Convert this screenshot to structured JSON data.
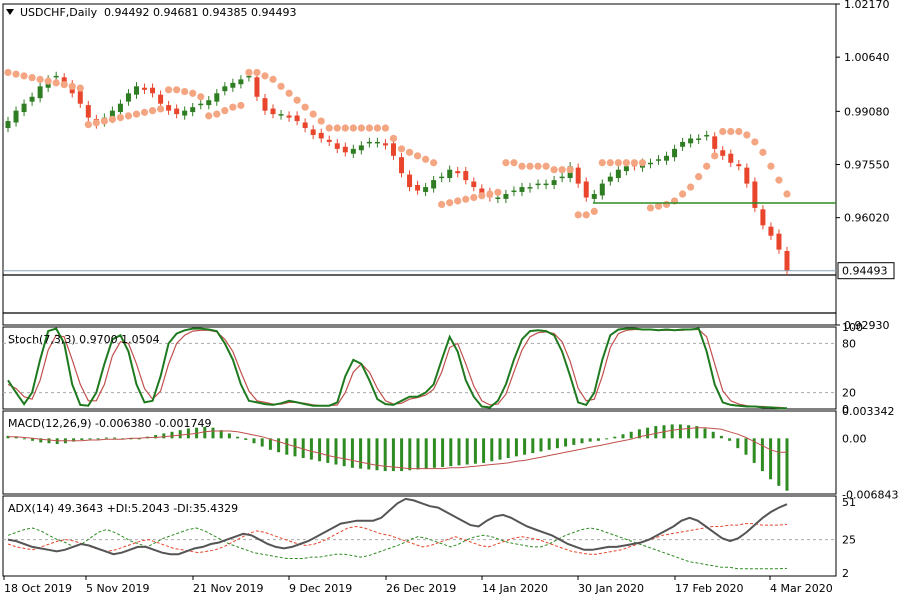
{
  "header": {
    "symbol_line": "USDCHF,Daily",
    "ohlc": "0.94492 0.94681 0.94385 0.94493"
  },
  "colors": {
    "bull": "#2e7d22",
    "bear": "#e8452c",
    "sar": "#f4a582",
    "stoch_main": "#1f7a1f",
    "stoch_signal": "#c0504d",
    "macd_hist": "#2e8b22",
    "macd_signal": "#c0504d",
    "adx": "#555555",
    "di_plus": "#2e8b22",
    "di_minus": "#e8452c",
    "hline": "#2e8b22",
    "current_price_line": "#8aa0b8"
  },
  "chart_data": [
    {
      "type": "candlestick",
      "name_label": "USDCHF,Daily",
      "ylim": [
        0.9293,
        1.0217
      ],
      "y_ticks": [
        "1.02170",
        "1.00640",
        "0.99080",
        "0.97550",
        "0.96020",
        "0.92930"
      ],
      "y_tick_values": [
        1.0217,
        1.0064,
        0.9908,
        0.9755,
        0.9602,
        0.9293
      ],
      "current_price": 0.94493,
      "current_price_label": "0.94493",
      "horizontal_line": 0.9644,
      "x_labels": [
        "18 Oct 2019",
        "5 Nov 2019",
        "21 Nov 2019",
        "9 Dec 2019",
        "26 Dec 2019",
        "14 Jan 2020",
        "30 Jan 2020",
        "17 Feb 2020",
        "4 Mar 2020"
      ],
      "close_path": [
        0.988,
        0.991,
        0.993,
        0.995,
        0.998,
        1.0,
        1.001,
        0.999,
        0.996,
        0.993,
        0.989,
        0.987,
        0.989,
        0.991,
        0.993,
        0.996,
        0.998,
        0.997,
        0.996,
        0.993,
        0.991,
        0.99,
        0.991,
        0.992,
        0.993,
        0.994,
        0.996,
        0.998,
        0.999,
        1.0,
        1.001,
        0.995,
        0.991,
        0.99,
        0.99,
        0.989,
        0.988,
        0.986,
        0.984,
        0.983,
        0.982,
        0.98,
        0.979,
        0.98,
        0.981,
        0.982,
        0.982,
        0.981,
        0.978,
        0.973,
        0.969,
        0.968,
        0.969,
        0.971,
        0.972,
        0.974,
        0.973,
        0.971,
        0.969,
        0.967,
        0.966,
        0.966,
        0.967,
        0.968,
        0.969,
        0.969,
        0.97,
        0.97,
        0.971,
        0.972,
        0.975,
        0.97,
        0.966,
        0.967,
        0.97,
        0.972,
        0.974,
        0.975,
        0.975,
        0.976,
        0.976,
        0.977,
        0.978,
        0.98,
        0.982,
        0.983,
        0.983,
        0.984,
        0.98,
        0.978,
        0.976,
        0.975,
        0.97,
        0.963,
        0.958,
        0.955,
        0.951,
        0.9449
      ],
      "sar": [
        1.002,
        1.0015,
        1.001,
        1.0005,
        1.0,
        0.9995,
        0.999,
        0.9985,
        0.998,
        0.9975,
        0.987,
        0.9875,
        0.988,
        0.9885,
        0.989,
        0.9895,
        0.99,
        0.9905,
        0.991,
        0.9915,
        0.997,
        0.997,
        0.9965,
        0.996,
        0.995,
        0.9895,
        0.99,
        0.991,
        0.992,
        0.9925,
        1.002,
        1.002,
        1.001,
        1.0,
        0.998,
        0.996,
        0.994,
        0.992,
        0.99,
        0.988,
        0.986,
        0.986,
        0.986,
        0.986,
        0.986,
        0.986,
        0.986,
        0.986,
        0.983,
        0.98,
        0.979,
        0.978,
        0.977,
        0.976,
        0.964,
        0.9645,
        0.965,
        0.9655,
        0.966,
        0.9665,
        0.967,
        0.9675,
        0.976,
        0.976,
        0.975,
        0.975,
        0.975,
        0.975,
        0.974,
        0.974,
        0.974,
        0.961,
        0.961,
        0.962,
        0.976,
        0.976,
        0.976,
        0.976,
        0.976,
        0.976,
        0.963,
        0.9635,
        0.964,
        0.965,
        0.967,
        0.969,
        0.972,
        0.975,
        0.978,
        0.985,
        0.985,
        0.985,
        0.984,
        0.982,
        0.979,
        0.975,
        0.971,
        0.967
      ]
    },
    {
      "type": "line",
      "name_label": "Stoch(7,3,3) 0.9700 1.0504",
      "ylim": [
        0,
        100
      ],
      "y_ticks": [
        "100",
        "80",
        "20",
        "0"
      ],
      "y_tick_values": [
        100,
        80,
        20,
        0
      ],
      "levels": [
        80,
        20
      ],
      "series": [
        {
          "role": "main",
          "values": [
            35,
            20,
            6,
            20,
            60,
            95,
            98,
            80,
            30,
            5,
            4,
            20,
            55,
            85,
            90,
            70,
            30,
            8,
            10,
            40,
            80,
            92,
            96,
            98,
            98,
            97,
            95,
            80,
            60,
            30,
            10,
            8,
            6,
            5,
            7,
            10,
            8,
            6,
            4,
            4,
            4,
            8,
            40,
            60,
            55,
            35,
            12,
            6,
            5,
            10,
            15,
            15,
            20,
            30,
            60,
            88,
            70,
            35,
            15,
            3,
            2,
            10,
            30,
            60,
            85,
            95,
            96,
            95,
            90,
            70,
            40,
            8,
            5,
            20,
            60,
            90,
            97,
            98,
            98,
            97,
            97,
            96,
            97,
            96,
            97,
            97,
            98,
            70,
            30,
            8,
            5,
            4,
            3,
            3,
            2,
            2,
            1,
            1
          ]
        },
        {
          "role": "signal",
          "values": [
            30,
            25,
            15,
            12,
            35,
            72,
            90,
            88,
            60,
            30,
            10,
            10,
            30,
            65,
            82,
            80,
            55,
            25,
            12,
            22,
            55,
            80,
            90,
            95,
            96,
            96,
            94,
            85,
            70,
            45,
            22,
            10,
            8,
            6,
            6,
            8,
            8,
            7,
            5,
            4,
            4,
            5,
            20,
            45,
            55,
            45,
            25,
            10,
            6,
            7,
            12,
            14,
            17,
            24,
            45,
            75,
            80,
            55,
            28,
            10,
            5,
            6,
            18,
            45,
            72,
            88,
            93,
            94,
            92,
            82,
            58,
            25,
            10,
            12,
            40,
            75,
            92,
            96,
            97,
            97,
            97,
            96,
            96,
            96,
            96,
            97,
            97,
            88,
            55,
            22,
            10,
            6,
            4,
            3,
            3,
            2,
            2,
            1
          ]
        }
      ]
    },
    {
      "type": "bar",
      "name_label": "MACD(12,26,9) -0.006380 -0.001749",
      "ylim": [
        -0.0068,
        0.00334
      ],
      "y_ticks": [
        "0.003342",
        "0.00",
        "-0.006843"
      ],
      "y_tick_values": [
        0.003342,
        0.0,
        -0.006843
      ],
      "series": [
        {
          "role": "histogram",
          "values": [
            0.0003,
            0.0002,
            0.0,
            -0.0003,
            -0.0005,
            -0.0006,
            -0.0007,
            -0.0006,
            -0.0004,
            -0.0002,
            -0.0001,
            0.0,
            0.0001,
            0.0001,
            0.0,
            -0.0001,
            0.0,
            0.0002,
            0.0004,
            0.0006,
            0.0008,
            0.001,
            0.0012,
            0.0013,
            0.0014,
            0.0013,
            0.001,
            0.0006,
            0.0002,
            -0.0002,
            -0.0006,
            -0.001,
            -0.0014,
            -0.0017,
            -0.002,
            -0.0022,
            -0.0024,
            -0.0026,
            -0.0028,
            -0.003,
            -0.0032,
            -0.0034,
            -0.0036,
            -0.0037,
            -0.0038,
            -0.0039,
            -0.004,
            -0.004,
            -0.004,
            -0.0039,
            -0.0038,
            -0.0037,
            -0.0036,
            -0.0035,
            -0.0034,
            -0.0033,
            -0.0032,
            -0.0031,
            -0.003,
            -0.0028,
            -0.0026,
            -0.0024,
            -0.0022,
            -0.002,
            -0.0018,
            -0.0016,
            -0.0014,
            -0.0012,
            -0.001,
            -0.0008,
            -0.0006,
            -0.0004,
            -0.0003,
            -0.0001,
            0.0002,
            0.0005,
            0.0008,
            0.0011,
            0.0013,
            0.0015,
            0.0016,
            0.0017,
            0.0017,
            0.0016,
            0.0015,
            0.0012,
            0.0008,
            0.0003,
            -0.0003,
            -0.0012,
            -0.002,
            -0.003,
            -0.004,
            -0.005,
            -0.0058,
            -0.0064
          ]
        },
        {
          "role": "signal",
          "values": [
            0.0002,
            0.0002,
            0.0001,
            0.0,
            -0.0001,
            -0.0002,
            -0.0003,
            -0.0003,
            -0.0003,
            -0.0003,
            -0.0002,
            -0.0002,
            -0.0001,
            -0.0001,
            -0.0001,
            0.0,
            0.0,
            0.0001,
            0.0001,
            0.0002,
            0.0003,
            0.0004,
            0.0005,
            0.0006,
            0.0008,
            0.0009,
            0.0009,
            0.0009,
            0.0008,
            0.0006,
            0.0004,
            0.0002,
            -0.0001,
            -0.0004,
            -0.0007,
            -0.001,
            -0.0013,
            -0.0016,
            -0.0018,
            -0.0021,
            -0.0023,
            -0.0025,
            -0.0027,
            -0.0029,
            -0.0031,
            -0.0033,
            -0.0034,
            -0.0035,
            -0.0036,
            -0.0037,
            -0.0037,
            -0.0037,
            -0.0037,
            -0.0037,
            -0.0036,
            -0.0036,
            -0.0035,
            -0.0034,
            -0.0033,
            -0.0032,
            -0.0031,
            -0.003,
            -0.0028,
            -0.0027,
            -0.0025,
            -0.0023,
            -0.0021,
            -0.0019,
            -0.0017,
            -0.0015,
            -0.0013,
            -0.0011,
            -0.0009,
            -0.0007,
            -0.0005,
            -0.0003,
            -0.0001,
            0.0002,
            0.0004,
            0.0006,
            0.0008,
            0.001,
            0.0011,
            0.0012,
            0.0013,
            0.0013,
            0.0012,
            0.0011,
            0.0008,
            0.0005,
            0.0001,
            -0.0004,
            -0.0009,
            -0.0014,
            -0.0017,
            -0.0017
          ]
        }
      ]
    },
    {
      "type": "line",
      "name_label": "ADX(14) 49.3643 +DI:5.2043 -DI:35.4329",
      "ylim": [
        0,
        55
      ],
      "y_ticks": [
        "51",
        "25",
        "2"
      ],
      "y_tick_values": [
        51,
        25,
        2
      ],
      "series": [
        {
          "role": "adx",
          "values": [
            25,
            24,
            22,
            20,
            19,
            18,
            17,
            18,
            20,
            22,
            21,
            19,
            17,
            15,
            16,
            18,
            20,
            20,
            18,
            16,
            15,
            15,
            17,
            19,
            20,
            22,
            23,
            25,
            27,
            29,
            28,
            25,
            22,
            20,
            19,
            20,
            22,
            24,
            27,
            30,
            33,
            36,
            37,
            38,
            38,
            38,
            40,
            45,
            50,
            53,
            52,
            50,
            48,
            47,
            44,
            41,
            38,
            35,
            34,
            38,
            41,
            42,
            40,
            37,
            34,
            32,
            30,
            28,
            25,
            22,
            20,
            18,
            18,
            19,
            20,
            20,
            21,
            22,
            23,
            25,
            28,
            31,
            34,
            38,
            40,
            38,
            34,
            30,
            26,
            24,
            26,
            30,
            35,
            40,
            44,
            47,
            49.36
          ]
        },
        {
          "role": "plus_di",
          "values": [
            28,
            30,
            32,
            33,
            31,
            28,
            25,
            23,
            20,
            22,
            26,
            30,
            32,
            30,
            27,
            24,
            22,
            20,
            23,
            26,
            28,
            30,
            32,
            33,
            31,
            28,
            25,
            22,
            20,
            18,
            16,
            15,
            14,
            13,
            12,
            12,
            12,
            13,
            13,
            14,
            15,
            15,
            14,
            13,
            14,
            16,
            18,
            20,
            22,
            25,
            27,
            26,
            24,
            22,
            20,
            22,
            25,
            27,
            28,
            27,
            25,
            23,
            22,
            21,
            20,
            20,
            22,
            25,
            28,
            30,
            32,
            33,
            32,
            30,
            28,
            26,
            24,
            22,
            20,
            18,
            16,
            14,
            12,
            10,
            9,
            8,
            7,
            6,
            6,
            5,
            5,
            5,
            5,
            5,
            5,
            5.2
          ]
        },
        {
          "role": "minus_di",
          "values": [
            22,
            20,
            19,
            18,
            20,
            22,
            24,
            25,
            24,
            22,
            20,
            18,
            17,
            18,
            20,
            22,
            24,
            25,
            23,
            21,
            19,
            18,
            17,
            16,
            17,
            18,
            20,
            23,
            26,
            29,
            31,
            30,
            28,
            26,
            24,
            22,
            21,
            22,
            24,
            27,
            30,
            33,
            34,
            33,
            31,
            29,
            28,
            26,
            24,
            22,
            20,
            21,
            23,
            25,
            27,
            25,
            23,
            21,
            20,
            22,
            24,
            26,
            27,
            26,
            25,
            23,
            21,
            19,
            17,
            16,
            15,
            15,
            16,
            17,
            18,
            20,
            22,
            24,
            26,
            28,
            29,
            30,
            31,
            32,
            33,
            34,
            34,
            35,
            35,
            36,
            36,
            35,
            35,
            35,
            35.4
          ]
        }
      ]
    }
  ]
}
